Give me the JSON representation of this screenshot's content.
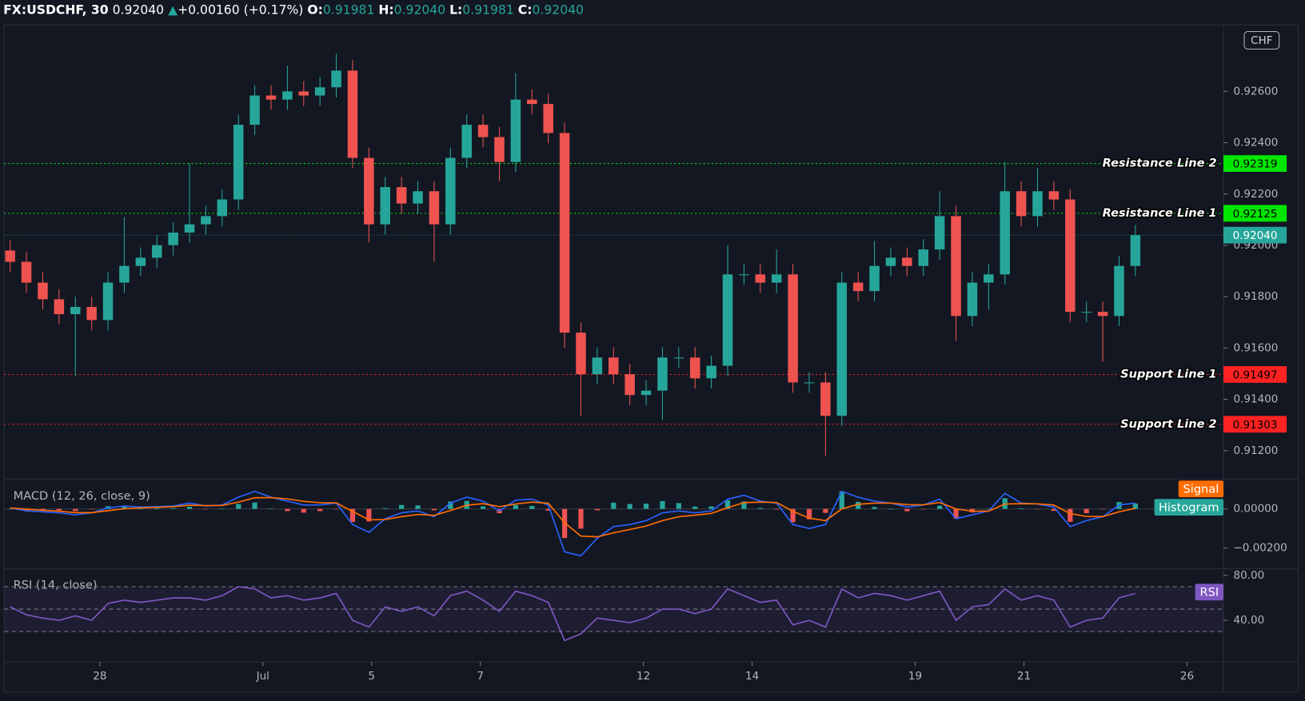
{
  "header": {
    "symbol": "FX:USDCHF, 30",
    "last": "0.92040",
    "arrow": "▲",
    "change": "+0.00160 (+0.17%)",
    "ohlc": [
      {
        "key": "O:",
        "value": "0.91981"
      },
      {
        "key": "H:",
        "value": "0.92040"
      },
      {
        "key": "L:",
        "value": "0.91981"
      },
      {
        "key": "C:",
        "value": "0.92040"
      }
    ]
  },
  "chart_data": {
    "type": "candlestick",
    "currency": "CHF",
    "up_color": "#26a69a",
    "down_color": "#ef5350",
    "grid": false,
    "xlim": [
      -1.76,
      20.67
    ],
    "xticks": [
      {
        "value": 0,
        "label": "28"
      },
      {
        "value": 3,
        "label": "Jul"
      },
      {
        "value": 5,
        "label": "5"
      },
      {
        "value": 7,
        "label": "7"
      },
      {
        "value": 10,
        "label": "12"
      },
      {
        "value": 12,
        "label": "14"
      },
      {
        "value": 15,
        "label": "19"
      },
      {
        "value": 17,
        "label": "21"
      },
      {
        "value": 20,
        "label": "26"
      }
    ],
    "ylim": [
      0.91093,
      0.92859
    ],
    "yticks": [
      {
        "value": 0.912,
        "label": "0.91200"
      },
      {
        "value": 0.914,
        "label": "0.91400"
      },
      {
        "value": 0.916,
        "label": "0.91600"
      },
      {
        "value": 0.918,
        "label": "0.91800"
      },
      {
        "value": 0.92,
        "label": "0.92000"
      },
      {
        "value": 0.922,
        "label": "0.92200"
      },
      {
        "value": 0.924,
        "label": "0.92400"
      },
      {
        "value": 0.926,
        "label": "0.92600"
      }
    ],
    "x": [
      -1.65,
      -1.35,
      -1.05,
      -0.75,
      -0.45,
      -0.15,
      0.15,
      0.45,
      0.75,
      1.05,
      1.35,
      1.65,
      1.95,
      2.25,
      2.55,
      2.85,
      3.15,
      3.45,
      3.75,
      4.05,
      4.35,
      4.65,
      4.95,
      5.25,
      5.55,
      5.85,
      6.15,
      6.45,
      6.75,
      7.05,
      7.35,
      7.65,
      7.95,
      8.25,
      8.55,
      8.85,
      9.15,
      9.45,
      9.75,
      10.05,
      10.35,
      10.65,
      10.95,
      11.25,
      11.55,
      11.85,
      12.15,
      12.45,
      12.75,
      13.05,
      13.35,
      13.65,
      13.95,
      14.25,
      14.55,
      14.85,
      15.15,
      15.45,
      15.75,
      16.05,
      16.35,
      16.65,
      16.95,
      17.25,
      17.55,
      17.85,
      18.15,
      18.45,
      18.75,
      19.05
    ],
    "open": [
      0.9198,
      0.91936,
      0.91855,
      0.9179,
      0.91732,
      0.9176,
      0.91709,
      0.91855,
      0.9192,
      0.91952,
      0.92001,
      0.9205,
      0.92082,
      0.92114,
      0.92179,
      0.9247,
      0.92584,
      0.92568,
      0.926,
      0.92584,
      0.92616,
      0.92681,
      0.92341,
      0.92082,
      0.92227,
      0.92163,
      0.92211,
      0.92082,
      0.92341,
      0.9247,
      0.92422,
      0.92325,
      0.92568,
      0.92551,
      0.92438,
      0.9166,
      0.91498,
      0.91563,
      0.91498,
      0.91417,
      0.91434,
      0.91563,
      0.91563,
      0.91482,
      0.91531,
      0.91887,
      0.91887,
      0.91855,
      0.91887,
      0.91466,
      0.91466,
      0.91336,
      0.91855,
      0.91822,
      0.9192,
      0.91952,
      0.9192,
      0.91984,
      0.92114,
      0.91725,
      0.91855,
      0.91887,
      0.92211,
      0.92114,
      0.92211,
      0.92179,
      0.91741,
      0.91741,
      0.91725,
      0.9192
    ],
    "high": [
      0.9202,
      0.91976,
      0.91895,
      0.9183,
      0.918,
      0.918,
      0.91895,
      0.9211,
      0.91992,
      0.92041,
      0.9209,
      0.9232,
      0.92154,
      0.92219,
      0.9251,
      0.92624,
      0.92624,
      0.927,
      0.9264,
      0.92656,
      0.92746,
      0.92721,
      0.92381,
      0.92267,
      0.92267,
      0.92251,
      0.92251,
      0.92381,
      0.9251,
      0.9251,
      0.92462,
      0.92671,
      0.92608,
      0.92591,
      0.92478,
      0.917,
      0.91603,
      0.91603,
      0.91538,
      0.91474,
      0.91603,
      0.91603,
      0.91603,
      0.91571,
      0.92001,
      0.91927,
      0.91927,
      0.91985,
      0.91927,
      0.91506,
      0.91506,
      0.91895,
      0.91895,
      0.92017,
      0.91992,
      0.91992,
      0.92024,
      0.92211,
      0.92154,
      0.91895,
      0.91927,
      0.92325,
      0.92251,
      0.923,
      0.92251,
      0.92219,
      0.91781,
      0.91781,
      0.9196,
      0.9208
    ],
    "low": [
      0.91896,
      0.91815,
      0.9175,
      0.91692,
      0.9149,
      0.91669,
      0.91669,
      0.91815,
      0.9188,
      0.91912,
      0.91961,
      0.9201,
      0.92042,
      0.92074,
      0.92139,
      0.9243,
      0.92528,
      0.92528,
      0.92544,
      0.92544,
      0.92576,
      0.92301,
      0.92011,
      0.92042,
      0.92123,
      0.92123,
      0.91936,
      0.92042,
      0.92301,
      0.92382,
      0.9225,
      0.92285,
      0.92511,
      0.92398,
      0.916,
      0.91336,
      0.91458,
      0.91458,
      0.91377,
      0.91377,
      0.9132,
      0.91523,
      0.91442,
      0.91442,
      0.91491,
      0.91847,
      0.91815,
      0.91815,
      0.91426,
      0.91426,
      0.91181,
      0.91296,
      0.91782,
      0.91782,
      0.9188,
      0.9188,
      0.9188,
      0.91944,
      0.91628,
      0.91685,
      0.9175,
      0.91847,
      0.92074,
      0.92074,
      0.92139,
      0.91701,
      0.91701,
      0.91547,
      0.91685,
      0.9188
    ],
    "close": [
      0.91936,
      0.91855,
      0.9179,
      0.91732,
      0.9176,
      0.91709,
      0.91855,
      0.9192,
      0.91952,
      0.92001,
      0.9205,
      0.92082,
      0.92114,
      0.92179,
      0.9247,
      0.92584,
      0.92568,
      0.926,
      0.92584,
      0.92616,
      0.92681,
      0.92341,
      0.92082,
      0.92227,
      0.92163,
      0.92211,
      0.92082,
      0.92341,
      0.9247,
      0.92422,
      0.92325,
      0.92568,
      0.92551,
      0.92438,
      0.9166,
      0.91498,
      0.91563,
      0.91498,
      0.91417,
      0.91434,
      0.91563,
      0.91563,
      0.91482,
      0.91531,
      0.91887,
      0.91887,
      0.91855,
      0.91887,
      0.91466,
      0.91466,
      0.91336,
      0.91855,
      0.91822,
      0.9192,
      0.91952,
      0.9192,
      0.91984,
      0.92114,
      0.91725,
      0.91855,
      0.91887,
      0.92211,
      0.92114,
      0.92211,
      0.92179,
      0.91741,
      0.91741,
      0.91725,
      0.9192,
      0.9204
    ],
    "lines": [
      {
        "name": "Resistance Line 2",
        "value": 0.92319,
        "color": "#00e600"
      },
      {
        "name": "Resistance Line 1",
        "value": 0.92125,
        "color": "#00e600"
      },
      {
        "value": 0.9204,
        "label": "0.92040",
        "color": "#26a69a"
      },
      {
        "name": "Support Line 1",
        "value": 0.91497,
        "color": "#ff2222"
      },
      {
        "name": "Support Line 2",
        "value": 0.91303,
        "color": "#ff2222"
      }
    ]
  },
  "macd": {
    "title": "MACD (12, 26, close, 9)",
    "ylim": [
      -0.00302,
      0.00149
    ],
    "yticks": [
      {
        "value": 0,
        "label": "0.00000"
      },
      {
        "value": -0.002,
        "label": "−0.00200"
      }
    ],
    "macd_line": {
      "color": "#2962ff",
      "values": [
        5e-05,
        -0.0001,
        -0.00015,
        -0.0002,
        -0.0003,
        -0.0002,
        5e-05,
        0.00015,
        0.0001,
        0.00012,
        0.00015,
        0.0003,
        0.00015,
        0.0002,
        0.0006,
        0.0009,
        0.0006,
        0.0004,
        0.0002,
        0.0002,
        0.0003,
        -0.0008,
        -0.0012,
        -0.0005,
        -0.0002,
        -0.0001,
        -0.0004,
        0.0003,
        0.0006,
        0.0004,
        -0.0001,
        0.00045,
        0.0005,
        0.0002,
        -0.0022,
        -0.0024,
        -0.0015,
        -0.0009,
        -0.0008,
        -0.0006,
        -0.0002,
        -0.0001,
        -0.0002,
        -0.0001,
        0.0005,
        0.0007,
        0.0004,
        0.0003,
        -0.0008,
        -0.001,
        -0.0008,
        0.0009,
        0.0006,
        0.0004,
        0.0003,
        0.0001,
        0.0002,
        0.0005,
        -0.0005,
        -0.0003,
        -0.0001,
        0.0008,
        0.0003,
        0.00025,
        0.0001,
        -0.0009,
        -0.0006,
        -0.0004,
        0.0002,
        0.0003
      ]
    },
    "series": [
      {
        "name": "Signal",
        "color": "#ff6d00",
        "values": [
          5e-05,
          -1e-05,
          -7e-05,
          -0.00012,
          -0.00019,
          -0.00019,
          -9e-05,
          1e-05,
          5e-05,
          8e-05,
          0.00011,
          0.00019,
          0.00017,
          0.00018,
          0.00035,
          0.00057,
          0.00058,
          0.00051,
          0.00039,
          0.00031,
          0.00031,
          -0.00013,
          -0.00056,
          -0.00054,
          -0.0004,
          -0.00028,
          -0.00033,
          -8e-05,
          0.00019,
          0.00027,
          0.00012,
          0.00025,
          0.00035,
          0.00029,
          -0.00071,
          -0.00139,
          -0.00143,
          -0.00122,
          -0.00105,
          -0.00087,
          -0.0006,
          -0.0004,
          -0.00032,
          -0.00023,
          6e-05,
          0.00032,
          0.00035,
          0.00033,
          -0.00012,
          -0.00047,
          -0.0006,
          0,
          0.00024,
          0.0003,
          0.0003,
          0.00022,
          0.00021,
          0.00033,
          0,
          -0.00012,
          -0.00011,
          0.00025,
          0.00027,
          0.00026,
          0.0002,
          -0.00024,
          -0.00038,
          -0.00039,
          -0.00015,
          3e-05
        ]
      },
      {
        "name": "Histogram",
        "color": "#26a69a",
        "negative_color": "#ef5350",
        "values": [
          0,
          -9e-05,
          -8e-05,
          -8e-05,
          -0.00011,
          -1e-05,
          0.00014,
          0.00014,
          5e-05,
          4e-05,
          4e-05,
          0.00011,
          -2e-05,
          2e-05,
          0.00025,
          0.00033,
          2e-05,
          -0.00011,
          -0.00019,
          -0.00011,
          -1e-05,
          -0.00067,
          -0.00064,
          4e-05,
          0.0002,
          0.00018,
          -7e-05,
          0.00038,
          0.00041,
          0.00013,
          -0.00022,
          0.0002,
          0.00015,
          -9e-05,
          -0.00149,
          -0.00101,
          -7e-05,
          0.00032,
          0.00025,
          0.00027,
          0.0004,
          0.0003,
          0.00012,
          0.00013,
          0.00044,
          0.00038,
          5e-05,
          -3e-05,
          -0.00068,
          -0.00053,
          -0.0002,
          0.0009,
          0.00036,
          0.0001,
          0,
          -0.00012,
          -1e-05,
          0.00017,
          -0.0005,
          -0.00018,
          1e-05,
          0.00055,
          3e-05,
          -1e-05,
          -0.0001,
          -0.00066,
          -0.00022,
          -1e-05,
          0.00035,
          0.00027
        ]
      }
    ]
  },
  "rsi": {
    "title": "RSI (14, close)",
    "ylim": [
      3.7,
      85.2
    ],
    "yticks": [
      {
        "value": 80,
        "label": "80.00"
      },
      {
        "value": 40,
        "label": "40.00"
      }
    ],
    "levels": [
      70,
      50,
      30
    ],
    "series": [
      {
        "name": "RSI",
        "color": "#7e57c2",
        "values": [
          52,
          45,
          42,
          40,
          44,
          40,
          55,
          58,
          56,
          58,
          60,
          60,
          58,
          62,
          70,
          68,
          60,
          62,
          58,
          60,
          64,
          40,
          34,
          52,
          48,
          52,
          44,
          62,
          66,
          58,
          48,
          66,
          62,
          56,
          22,
          28,
          42,
          40,
          38,
          42,
          50,
          50,
          46,
          50,
          68,
          62,
          56,
          58,
          36,
          40,
          34,
          68,
          60,
          64,
          62,
          58,
          62,
          66,
          40,
          52,
          54,
          68,
          58,
          62,
          58,
          34,
          40,
          42,
          60,
          64
        ]
      }
    ]
  }
}
